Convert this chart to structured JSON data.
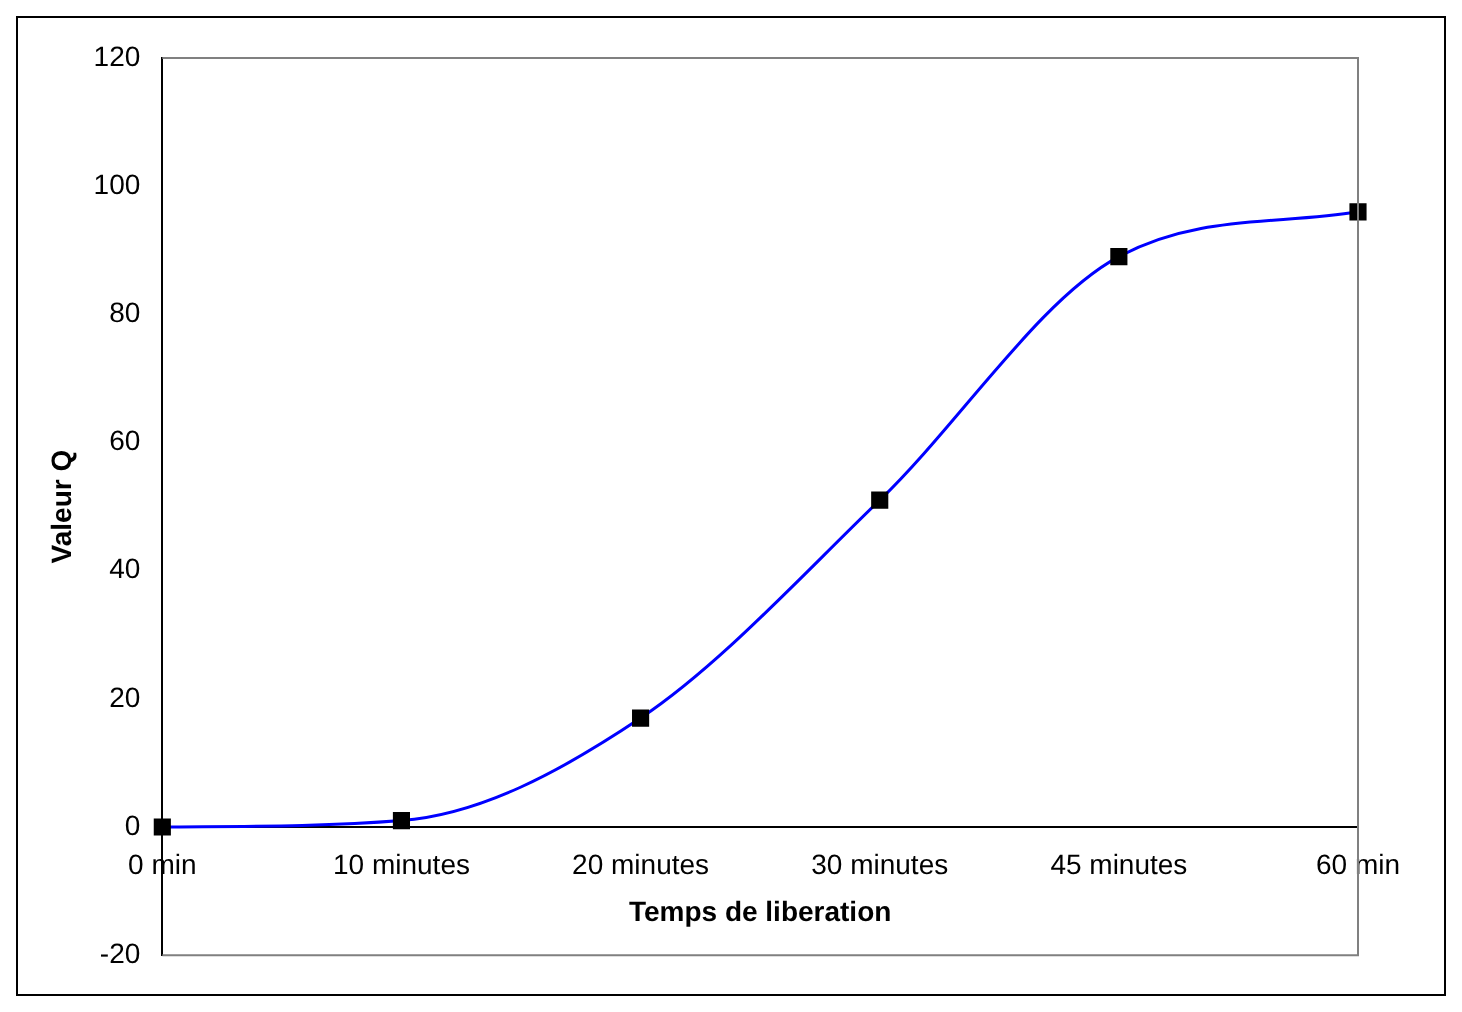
{
  "chart_data": {
    "type": "line",
    "xlabel": "Temps de liberation",
    "ylabel": "Valeur Q",
    "categories": [
      "0 min",
      "10 minutes",
      "20 minutes",
      "30 minutes",
      "45 minutes",
      "60 min"
    ],
    "series": [
      {
        "color": "#0000ff",
        "values": [
          0,
          1,
          17,
          51,
          89,
          96
        ]
      }
    ],
    "ylim": [
      -20,
      120
    ],
    "yticks": [
      -20,
      0,
      20,
      40,
      60,
      80,
      100,
      120
    ],
    "grid": false,
    "legend": false,
    "marker": "square",
    "line_style": "solid"
  }
}
